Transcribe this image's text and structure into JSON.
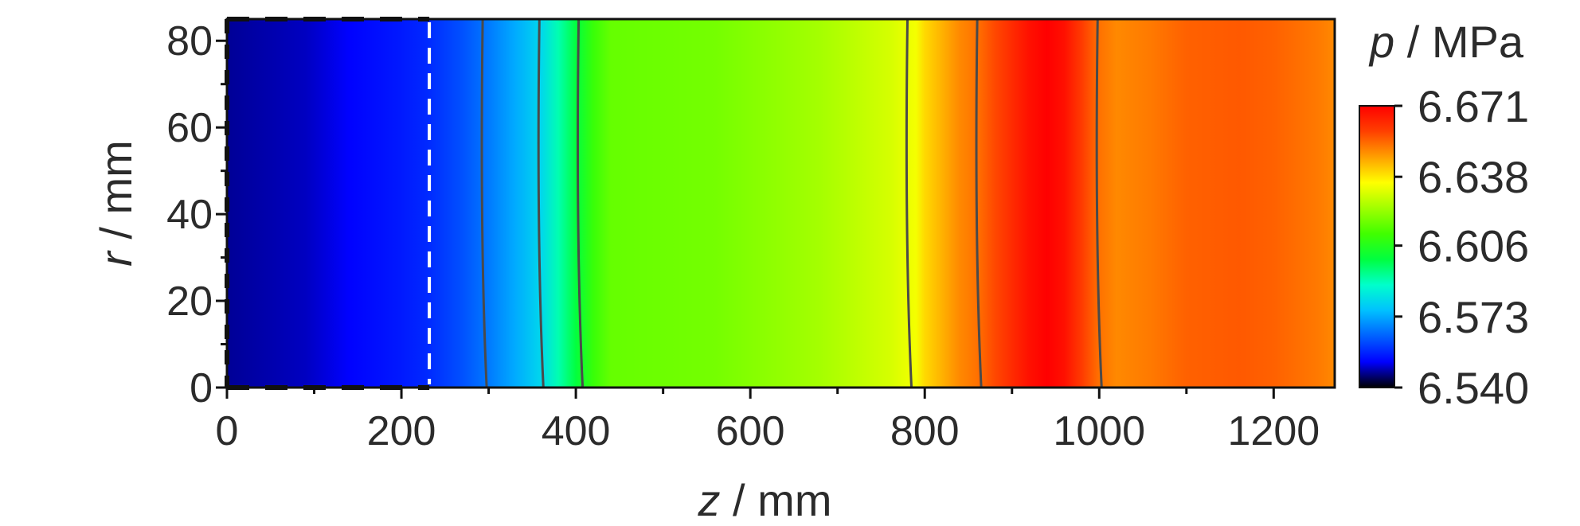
{
  "chart_data": {
    "type": "heatmap",
    "title": "",
    "xlabel": {
      "var": "z",
      "unit": " / mm"
    },
    "ylabel": {
      "var": "r",
      "unit": " / mm"
    },
    "colorbar_title": {
      "var": "p",
      "unit": " / MPa"
    },
    "xlim": [
      0,
      1270
    ],
    "ylim": [
      0,
      85
    ],
    "x_ticks": [
      0,
      200,
      400,
      600,
      800,
      1000,
      1200
    ],
    "x_tick_labels": [
      "0",
      "200",
      "400",
      "600",
      "800",
      "1000",
      "1200"
    ],
    "y_ticks": [
      0,
      20,
      40,
      60,
      80
    ],
    "y_tick_labels": [
      "0",
      "20",
      "40",
      "60",
      "80"
    ],
    "colorbar_range": [
      6.54,
      6.671
    ],
    "colorbar_ticks": [
      6.54,
      6.573,
      6.606,
      6.638,
      6.671
    ],
    "colorbar_tick_labels": [
      "6.540",
      "6.573",
      "6.606",
      "6.638",
      "6.671"
    ],
    "colormap": [
      "#000000",
      "#0000ff",
      "#0060ff",
      "#00c0ff",
      "#00ffcc",
      "#00ff40",
      "#40ff00",
      "#a0ff00",
      "#ffff00",
      "#ffa000",
      "#ff4000",
      "#ff0000"
    ],
    "pressure_profile": {
      "z": [
        0,
        90,
        140,
        200,
        230,
        270,
        300,
        330,
        360,
        380,
        400,
        420,
        440,
        560,
        680,
        760,
        790,
        800,
        820,
        840,
        860,
        880,
        900,
        920,
        940,
        960,
        980,
        1000,
        1020,
        1060,
        1100,
        1160,
        1200,
        1250,
        1270
      ],
      "p": [
        6.547,
        6.549,
        6.552,
        6.555,
        6.557,
        6.562,
        6.567,
        6.573,
        6.58,
        6.59,
        6.6,
        6.61,
        6.616,
        6.618,
        6.624,
        6.63,
        6.634,
        6.64,
        6.645,
        6.65,
        6.653,
        6.658,
        6.663,
        6.668,
        6.671,
        6.668,
        6.66,
        6.653,
        6.65,
        6.652,
        6.655,
        6.656,
        6.655,
        6.652,
        6.65
      ]
    },
    "isolines_z": [
      295,
      360,
      405,
      782,
      862,
      1000
    ],
    "dashed_line_z": 232
  }
}
